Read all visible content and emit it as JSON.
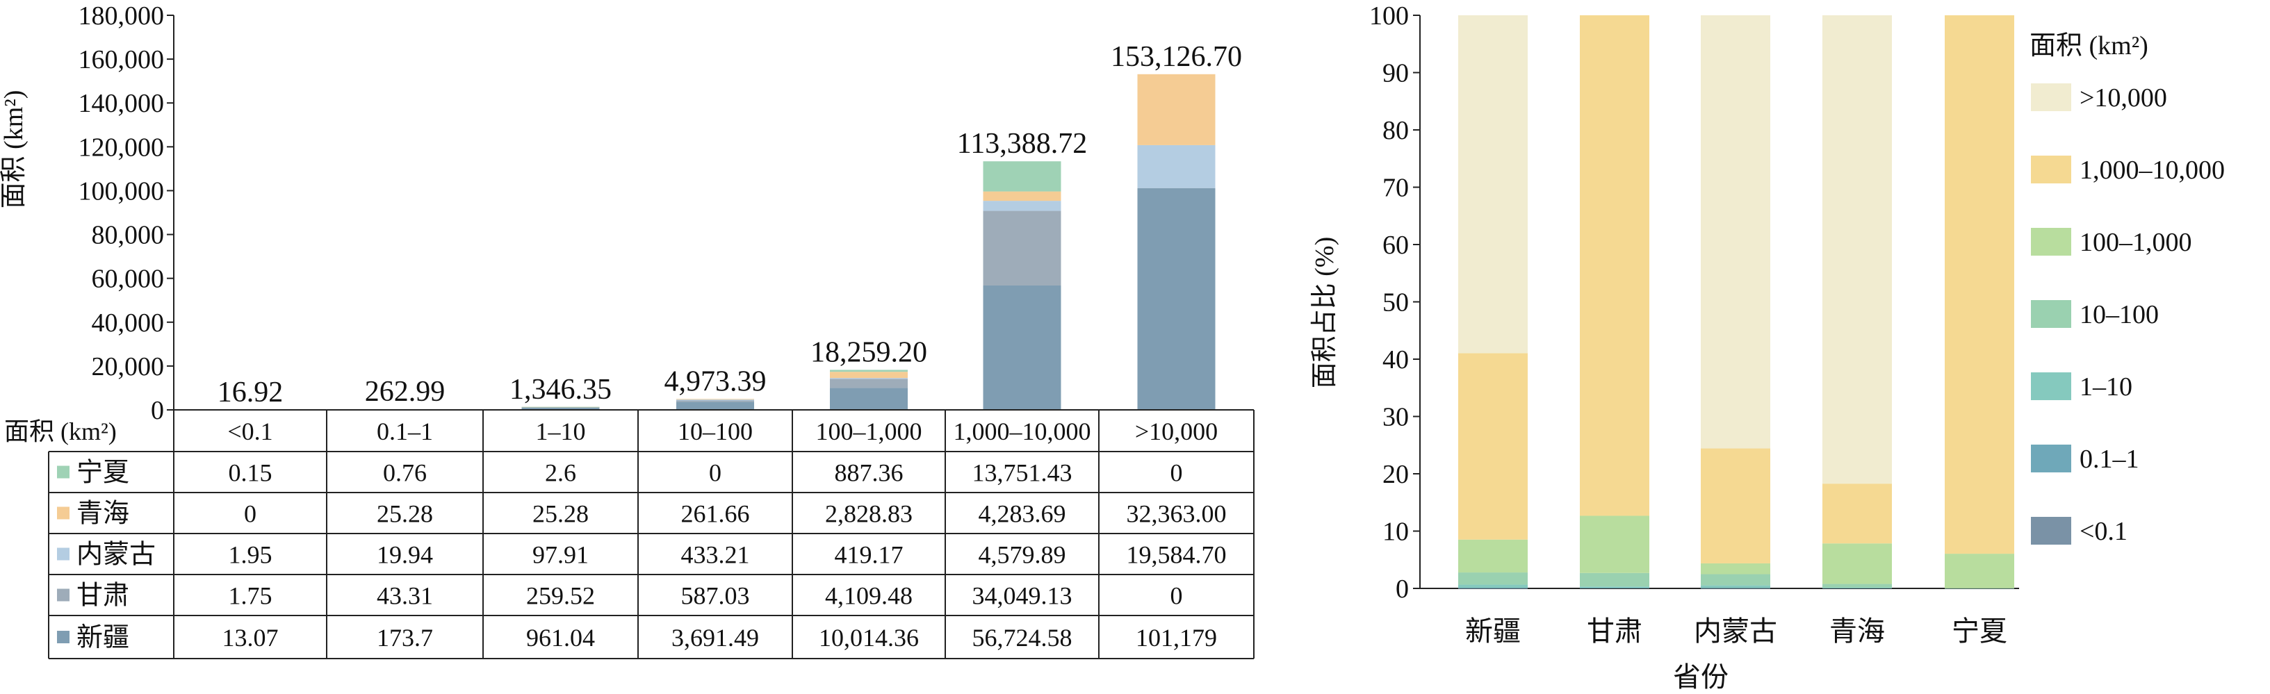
{
  "chart_data": [
    {
      "type": "bar",
      "stacked": true,
      "ylabel": "面积 (km²)",
      "ylim": [
        0,
        180000
      ],
      "yticks": [
        "0",
        "20,000",
        "40,000",
        "60,000",
        "80,000",
        "100,000",
        "120,000",
        "140,000",
        "160,000",
        "180,000"
      ],
      "categories_header": "面积 (km²)",
      "categories": [
        "<0.1",
        "0.1–1",
        "1–10",
        "10–100",
        "100–1,000",
        "1,000–10,000",
        ">10,000"
      ],
      "totals": [
        16.92,
        262.99,
        1346.35,
        4973.39,
        18259.2,
        113388.72,
        153126.7
      ],
      "total_labels": [
        "16.92",
        "262.99",
        "1,346.35",
        "4,973.39",
        "18,259.20",
        "113,388.72",
        "153,126.70"
      ],
      "series": [
        {
          "name": "新疆",
          "color": "#7f9db2",
          "values": [
            13.07,
            173.7,
            961.04,
            3691.49,
            10014.36,
            56724.58,
            101179
          ],
          "labels": [
            "13.07",
            "173.7",
            "961.04",
            "3,691.49",
            "10,014.36",
            "56,724.58",
            "101,179"
          ]
        },
        {
          "name": "甘肃",
          "color": "#9eacb9",
          "values": [
            1.75,
            43.31,
            259.52,
            587.03,
            4109.48,
            34049.13,
            0
          ],
          "labels": [
            "1.75",
            "43.31",
            "259.52",
            "587.03",
            "4,109.48",
            "34,049.13",
            "0"
          ]
        },
        {
          "name": "内蒙古",
          "color": "#b4cde2",
          "values": [
            1.95,
            19.94,
            97.91,
            433.21,
            419.17,
            4579.89,
            19584.7
          ],
          "labels": [
            "1.95",
            "19.94",
            "97.91",
            "433.21",
            "419.17",
            "4,579.89",
            "19,584.70"
          ]
        },
        {
          "name": "青海",
          "color": "#f5cc94",
          "values": [
            0,
            25.28,
            25.28,
            261.66,
            2828.83,
            4283.69,
            32363.0
          ],
          "labels": [
            "0",
            "25.28",
            "25.28",
            "261.66",
            "2,828.83",
            "4,283.69",
            "32,363.00"
          ]
        },
        {
          "name": "宁夏",
          "color": "#9fd2b5",
          "values": [
            0.15,
            0.76,
            2.6,
            0,
            887.36,
            13751.43,
            0
          ],
          "labels": [
            "0.15",
            "0.76",
            "2.6",
            "0",
            "887.36",
            "13,751.43",
            "0"
          ]
        }
      ],
      "table_row_order": [
        "宁夏",
        "青海",
        "内蒙古",
        "甘肃",
        "新疆"
      ]
    },
    {
      "type": "bar",
      "stacked": true,
      "xlabel": "省份",
      "ylabel": "面积占比 (%)",
      "ylim": [
        0,
        100
      ],
      "yticks": [
        "0",
        "10",
        "20",
        "30",
        "40",
        "50",
        "60",
        "70",
        "80",
        "90",
        "100"
      ],
      "categories": [
        "新疆",
        "甘肃",
        "内蒙古",
        "青海",
        "宁夏"
      ],
      "legend_title": "面积 (km²)",
      "legend_position": "right",
      "series": [
        {
          "name": "<0.1",
          "color": "#7a92a6",
          "values": [
            0.01,
            0.0,
            0.01,
            0.0,
            0.0
          ]
        },
        {
          "name": "0.1–1",
          "color": "#6fa8b9",
          "values": [
            0.1,
            0.11,
            0.08,
            0.06,
            0.0
          ]
        },
        {
          "name": "1–10",
          "color": "#85c9be",
          "values": [
            0.55,
            0.22,
            0.44,
            0.06,
            0.02
          ]
        },
        {
          "name": "10–100",
          "color": "#9ad1b0",
          "values": [
            2.12,
            2.36,
            1.95,
            0.66,
            0.0
          ]
        },
        {
          "name": "100–1,000",
          "color": "#b8dd9e",
          "values": [
            5.74,
            9.98,
            1.89,
            7.07,
            6.03
          ]
        },
        {
          "name": "1,000–10,000",
          "color": "#f5d992",
          "values": [
            32.53,
            87.33,
            20.05,
            10.43,
            93.95
          ]
        },
        {
          ">name": ">10,000",
          "name": ">10,000",
          "color": "#f1ecd0",
          "values": [
            58.95,
            0.0,
            75.58,
            81.72,
            0.0
          ]
        }
      ]
    }
  ]
}
